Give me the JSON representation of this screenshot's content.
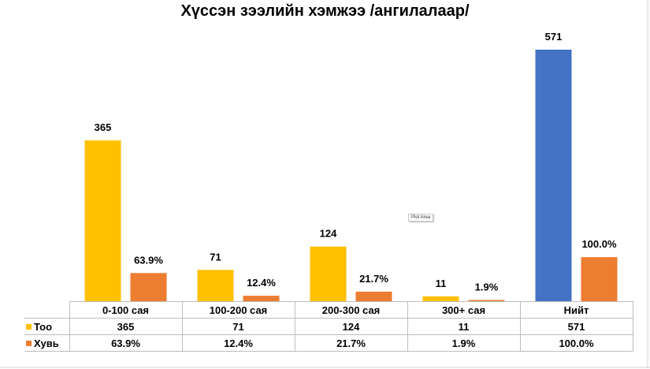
{
  "chart_data": {
    "type": "bar",
    "title": "Хүссэн зээлийн хэмжээ /ангилалаар/",
    "categories": [
      "0-100 сая",
      "100-200 сая",
      "200-300 сая",
      "300+ сая",
      "Нийт"
    ],
    "series": [
      {
        "name": "Тоо",
        "color": "#FFC000",
        "values": [
          365,
          71,
          124,
          11,
          571
        ],
        "labels": [
          "365",
          "71",
          "124",
          "11",
          "571"
        ],
        "point_colors": [
          "#FFC000",
          "#FFC000",
          "#FFC000",
          "#FFC000",
          "#4472C4"
        ]
      },
      {
        "name": "Хувь",
        "color": "#ED7D31",
        "values": [
          63.9,
          12.4,
          21.7,
          1.9,
          100.0
        ],
        "labels": [
          "63.9%",
          "12.4%",
          "21.7%",
          "1.9%",
          "100.0%"
        ]
      }
    ],
    "ylim": [
      0,
      600
    ],
    "xlabel": "",
    "ylabel": "",
    "grid": false,
    "legend": "data-table"
  },
  "tooltip": {
    "text": "Plot Area"
  }
}
